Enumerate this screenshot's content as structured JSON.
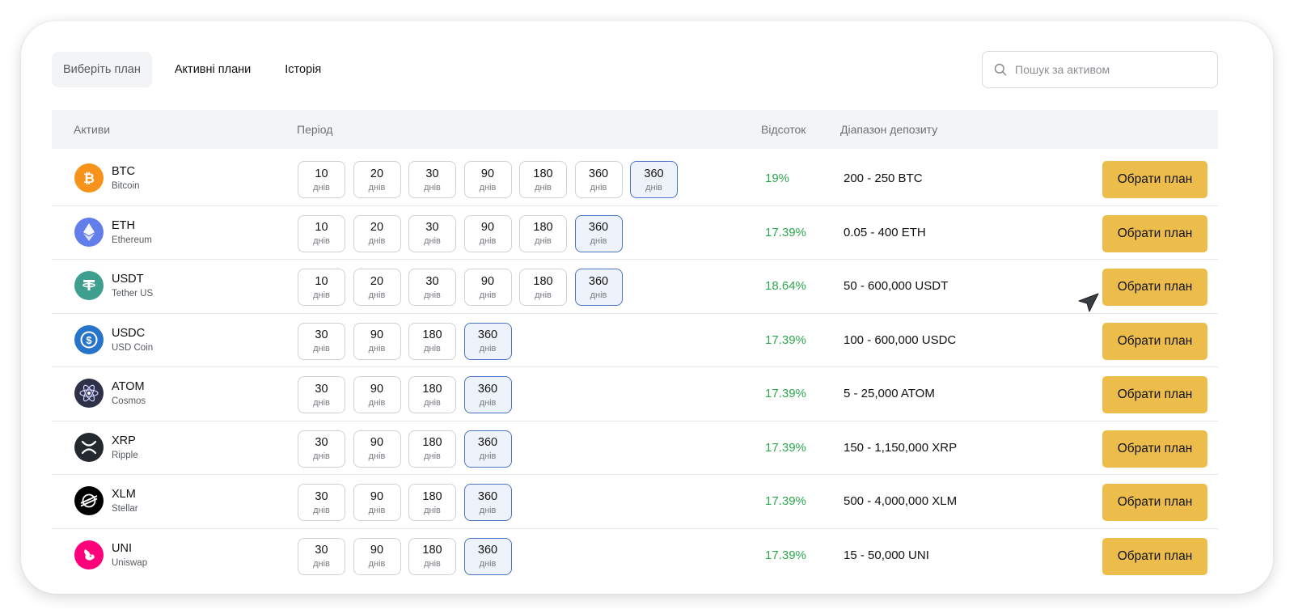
{
  "tabs": [
    {
      "label": "Виберіть план"
    },
    {
      "label": "Активні плани"
    },
    {
      "label": "Історія"
    }
  ],
  "search": {
    "placeholder": "Пошук за активом",
    "icon": "search-icon"
  },
  "table": {
    "headers": {
      "asset": "Активи",
      "period": "Період",
      "rate": "Відсоток",
      "range": "Діапазон депозиту"
    },
    "period_unit": "днів",
    "button_label": "Обрати план",
    "rows": [
      {
        "symbol": "BTC",
        "name": "Bitcoin",
        "icon": "bitcoin-icon",
        "color": "#f7931a",
        "periods": [
          "10",
          "20",
          "30",
          "90",
          "180",
          "360",
          "360"
        ],
        "selected": 6,
        "rate": "19%",
        "range": "200 - 250 BTC"
      },
      {
        "symbol": "ETH",
        "name": "Ethereum",
        "icon": "ethereum-icon",
        "color": "#627eea",
        "periods": [
          "10",
          "20",
          "30",
          "90",
          "180",
          "360"
        ],
        "selected": 5,
        "rate": "17.39%",
        "range": "0.05 - 400 ETH"
      },
      {
        "symbol": "USDT",
        "name": "Tether US",
        "icon": "tether-icon",
        "color": "#3e9f8f",
        "periods": [
          "10",
          "20",
          "30",
          "90",
          "180",
          "360"
        ],
        "selected": 5,
        "rate": "18.64%",
        "range": "50 - 600,000 USDT"
      },
      {
        "symbol": "USDC",
        "name": "USD Coin",
        "icon": "usdc-icon",
        "color": "#2775ca",
        "periods": [
          "30",
          "90",
          "180",
          "360"
        ],
        "selected": 3,
        "rate": "17.39%",
        "range": "100 - 600,000 USDC"
      },
      {
        "symbol": "ATOM",
        "name": "Cosmos",
        "icon": "cosmos-icon",
        "color": "#2e3148",
        "periods": [
          "30",
          "90",
          "180",
          "360"
        ],
        "selected": 3,
        "rate": "17.39%",
        "range": "5 - 25,000 ATOM"
      },
      {
        "symbol": "XRP",
        "name": "Ripple",
        "icon": "ripple-icon",
        "color": "#23292f",
        "periods": [
          "30",
          "90",
          "180",
          "360"
        ],
        "selected": 3,
        "rate": "17.39%",
        "range": "150 - 1,150,000 XRP"
      },
      {
        "symbol": "XLM",
        "name": "Stellar",
        "icon": "stellar-icon",
        "color": "#000000",
        "periods": [
          "30",
          "90",
          "180",
          "360"
        ],
        "selected": 3,
        "rate": "17.39%",
        "range": "500 - 4,000,000 XLM"
      },
      {
        "symbol": "UNI",
        "name": "Uniswap",
        "icon": "uniswap-icon",
        "color": "#ff007a",
        "periods": [
          "30",
          "90",
          "180",
          "360"
        ],
        "selected": 3,
        "rate": "17.39%",
        "range": "15 - 50,000 UNI"
      }
    ]
  },
  "colors": {
    "accent_button": "#ecbd4b",
    "rate_green": "#2ea84f",
    "selected_border": "#4a74c4"
  }
}
